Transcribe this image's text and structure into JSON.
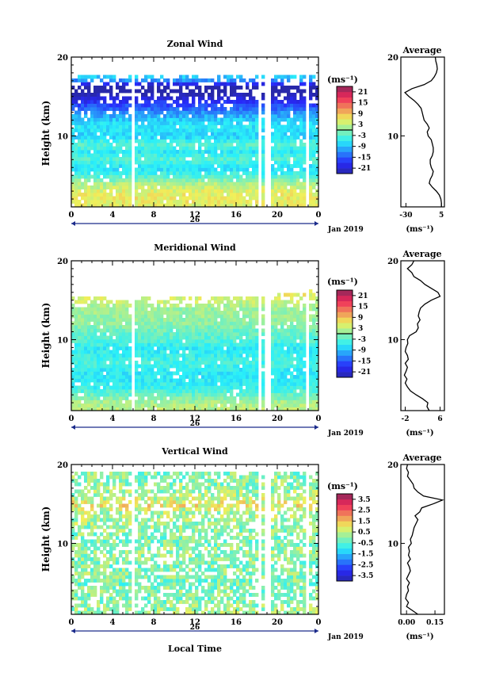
{
  "chart_data": [
    {
      "type": "heatmap",
      "title": "Zonal Wind",
      "xlabel": "",
      "ylabel": "Height (km)",
      "xticks": [
        "0",
        "4",
        "8",
        "12",
        "16",
        "20",
        "0"
      ],
      "xlim": [
        0,
        24
      ],
      "yticks": [
        "10",
        "20"
      ],
      "ylim": [
        1,
        20
      ],
      "date_label": "26",
      "month_label": "Jan 2019",
      "colorbar": {
        "unit": "(ms⁻¹)",
        "min": -24,
        "max": 24,
        "ticks": [
          "21",
          "15",
          "9",
          "3",
          "-3",
          "-9",
          "-15",
          "-21"
        ],
        "zero_line": true
      },
      "gaps_hours": [
        5.95,
        18.4,
        19.1,
        22.8
      ],
      "top_km": [
        17.3,
        17.6,
        17.8,
        17.5,
        17.6,
        17.4,
        17.6,
        17.7,
        17.5,
        17.6,
        17.3,
        17.8,
        17.6,
        17.2,
        17.5,
        17.6,
        17.7,
        17.4,
        17.6,
        17.5,
        17.8,
        17.6,
        17.5,
        17.8,
        17.4
      ],
      "profile_km": [
        1,
        2,
        3,
        4,
        5,
        6,
        7,
        8,
        9,
        10,
        11,
        12,
        13,
        14,
        15,
        16,
        17,
        18
      ],
      "profile_ms": [
        5,
        6,
        5,
        2,
        -4,
        -7,
        -3,
        -6,
        -3,
        -8,
        -6,
        -8,
        -12,
        -16,
        -22,
        -30,
        -12,
        -5
      ],
      "average": {
        "title": "Average",
        "xlabel": "(ms⁻¹)",
        "xticks": [
          "-30",
          "5"
        ],
        "xlim": [
          -35,
          8
        ],
        "yticks": [
          "10",
          "20"
        ],
        "heights_km": [
          1,
          1.5,
          2,
          2.5,
          3,
          3.5,
          4,
          4.5,
          5,
          5.5,
          6,
          6.5,
          7,
          7.5,
          8,
          8.5,
          9,
          9.5,
          10,
          10.5,
          11,
          11.5,
          12,
          12.5,
          13,
          13.5,
          14,
          14.5,
          15,
          15.5,
          16,
          16.5,
          17,
          17.5,
          18,
          18.5,
          19,
          19.5,
          20
        ],
        "values_ms": [
          5,
          5,
          4.5,
          3,
          0,
          -4,
          -7,
          -6,
          -4,
          -3,
          -5,
          -6,
          -6,
          -4,
          -3,
          -3,
          -4,
          -5,
          -8,
          -9,
          -7,
          -9,
          -12,
          -13,
          -14,
          -15,
          -18,
          -22,
          -27,
          -31,
          -24,
          -12,
          -5,
          -2,
          0,
          1,
          0.5,
          -0.5,
          -1
        ]
      }
    },
    {
      "type": "heatmap",
      "title": "Meridional Wind",
      "xlabel": "",
      "ylabel": "Height (km)",
      "xticks": [
        "0",
        "4",
        "8",
        "12",
        "16",
        "20",
        "0"
      ],
      "xlim": [
        0,
        24
      ],
      "yticks": [
        "10",
        "20"
      ],
      "ylim": [
        1,
        20
      ],
      "date_label": "26",
      "month_label": "Jan 2019",
      "colorbar": {
        "unit": "(ms⁻¹)",
        "min": -24,
        "max": 24,
        "ticks": [
          "21",
          "15",
          "9",
          "3",
          "-3",
          "-9",
          "-15",
          "-21"
        ],
        "zero_line": true
      },
      "gaps_hours": [
        5.95,
        18.4,
        19.1,
        22.8
      ],
      "top_km": [
        15.4,
        15.6,
        15.2,
        15.5,
        15.0,
        15.3,
        15.1,
        15.4,
        15.5,
        15.2,
        15.3,
        15.6,
        15.4,
        15.2,
        15.5,
        15.7,
        15.6,
        15.3,
        15.8,
        15.9,
        16.2,
        15.8,
        16.0,
        16.5,
        15.8
      ],
      "profile_km": [
        1,
        2,
        3,
        4,
        5,
        6,
        7,
        8,
        9,
        10,
        11,
        12,
        13,
        14,
        15,
        16,
        17,
        18
      ],
      "profile_ms": [
        3,
        2,
        -2,
        -5,
        -6,
        -6,
        -4,
        -5,
        -6,
        -3,
        -2,
        0,
        1,
        1,
        4,
        6,
        5,
        4
      ],
      "average": {
        "title": "Average",
        "xlabel": "(ms⁻¹)",
        "xticks": [
          "-2",
          "6"
        ],
        "xlim": [
          -3,
          7
        ],
        "yticks": [
          "10",
          "20"
        ],
        "heights_km": [
          1,
          1.5,
          2,
          2.5,
          3,
          3.5,
          4,
          4.5,
          5,
          5.5,
          6,
          6.5,
          7,
          7.5,
          8,
          8.5,
          9,
          9.5,
          10,
          10.5,
          11,
          11.5,
          12,
          12.5,
          13,
          13.5,
          14,
          14.5,
          15,
          15.5,
          16,
          16.5,
          17,
          17.5,
          18,
          18.5,
          19,
          19.5,
          20
        ],
        "values_ms": [
          3.5,
          3,
          3.2,
          2,
          0.5,
          -0.8,
          -1.5,
          -2,
          -1.6,
          -2.2,
          -1.8,
          -1.5,
          -2,
          -1.3,
          -1.5,
          -2,
          -1.8,
          -1.4,
          -1.5,
          -1,
          0.5,
          1,
          0.8,
          1.4,
          1,
          1.2,
          1.5,
          2.5,
          4,
          6,
          5.5,
          4,
          2.5,
          1.5,
          0,
          -0.5,
          -1.5,
          -0.5,
          0
        ]
      }
    },
    {
      "type": "heatmap",
      "title": "Vertical Wind",
      "xlabel": "Local Time",
      "ylabel": "Height (km)",
      "xticks": [
        "0",
        "4",
        "8",
        "12",
        "16",
        "20",
        "0"
      ],
      "xlim": [
        0,
        24
      ],
      "yticks": [
        "10",
        "20"
      ],
      "ylim": [
        1,
        20
      ],
      "date_label": "26",
      "month_label": "Jan 2019",
      "colorbar": {
        "unit": "(ms⁻¹)",
        "min": -4,
        "max": 4,
        "ticks": [
          "3.5",
          "2.5",
          "1.5",
          "0.5",
          "-0.5",
          "-1.5",
          "-2.5",
          "-3.5"
        ],
        "zero_line": false
      },
      "gaps_hours": [
        5.95,
        18.4,
        19.1,
        22.8
      ],
      "top_km": [
        18.9,
        18.9,
        18.9,
        18.9,
        18.9,
        18.9,
        18.9,
        18.9,
        18.9,
        18.9,
        18.9,
        18.9,
        18.9,
        18.9,
        18.9,
        18.9,
        18.9,
        18.9,
        18.9,
        18.9,
        18.9,
        18.9,
        18.9,
        18.9,
        18.9
      ],
      "profile_km": [
        1,
        2,
        3,
        4,
        5,
        6,
        7,
        8,
        9,
        10,
        11,
        12,
        13,
        14,
        15,
        16,
        17,
        18
      ],
      "profile_ms": [
        0.2,
        0.1,
        -0.1,
        0.0,
        -0.2,
        0.1,
        -0.1,
        0.0,
        0.2,
        -0.1,
        0.0,
        0.1,
        0.3,
        0.4,
        1.0,
        0.3,
        0.1,
        0.0
      ],
      "average": {
        "title": "Average",
        "xlabel": "(ms⁻¹)",
        "xticks": [
          "0.00",
          "0.15"
        ],
        "xlim": [
          -0.03,
          0.2
        ],
        "yticks": [
          "10",
          "20"
        ],
        "heights_km": [
          1,
          1.5,
          2,
          2.5,
          3,
          3.5,
          4,
          4.5,
          5,
          5.5,
          6,
          6.5,
          7,
          7.5,
          8,
          8.5,
          9,
          9.5,
          10,
          10.5,
          11,
          11.5,
          12,
          12.5,
          13,
          13.5,
          14,
          14.5,
          15,
          15.5,
          16,
          16.5,
          17,
          17.5,
          18,
          18.5,
          19,
          19.5,
          20
        ],
        "values_ms": [
          0.06,
          0.03,
          0.0,
          0.01,
          -0.005,
          0.0,
          0.01,
          0.005,
          0.015,
          0.0,
          0.01,
          0.02,
          0.015,
          0.005,
          0.02,
          0.01,
          0.015,
          0.01,
          0.025,
          0.02,
          0.03,
          0.035,
          0.04,
          0.05,
          0.06,
          0.045,
          0.07,
          0.08,
          0.14,
          0.19,
          0.09,
          0.06,
          0.04,
          0.035,
          0.02,
          0.005,
          0.01,
          0.0,
          0.005
        ]
      }
    }
  ]
}
